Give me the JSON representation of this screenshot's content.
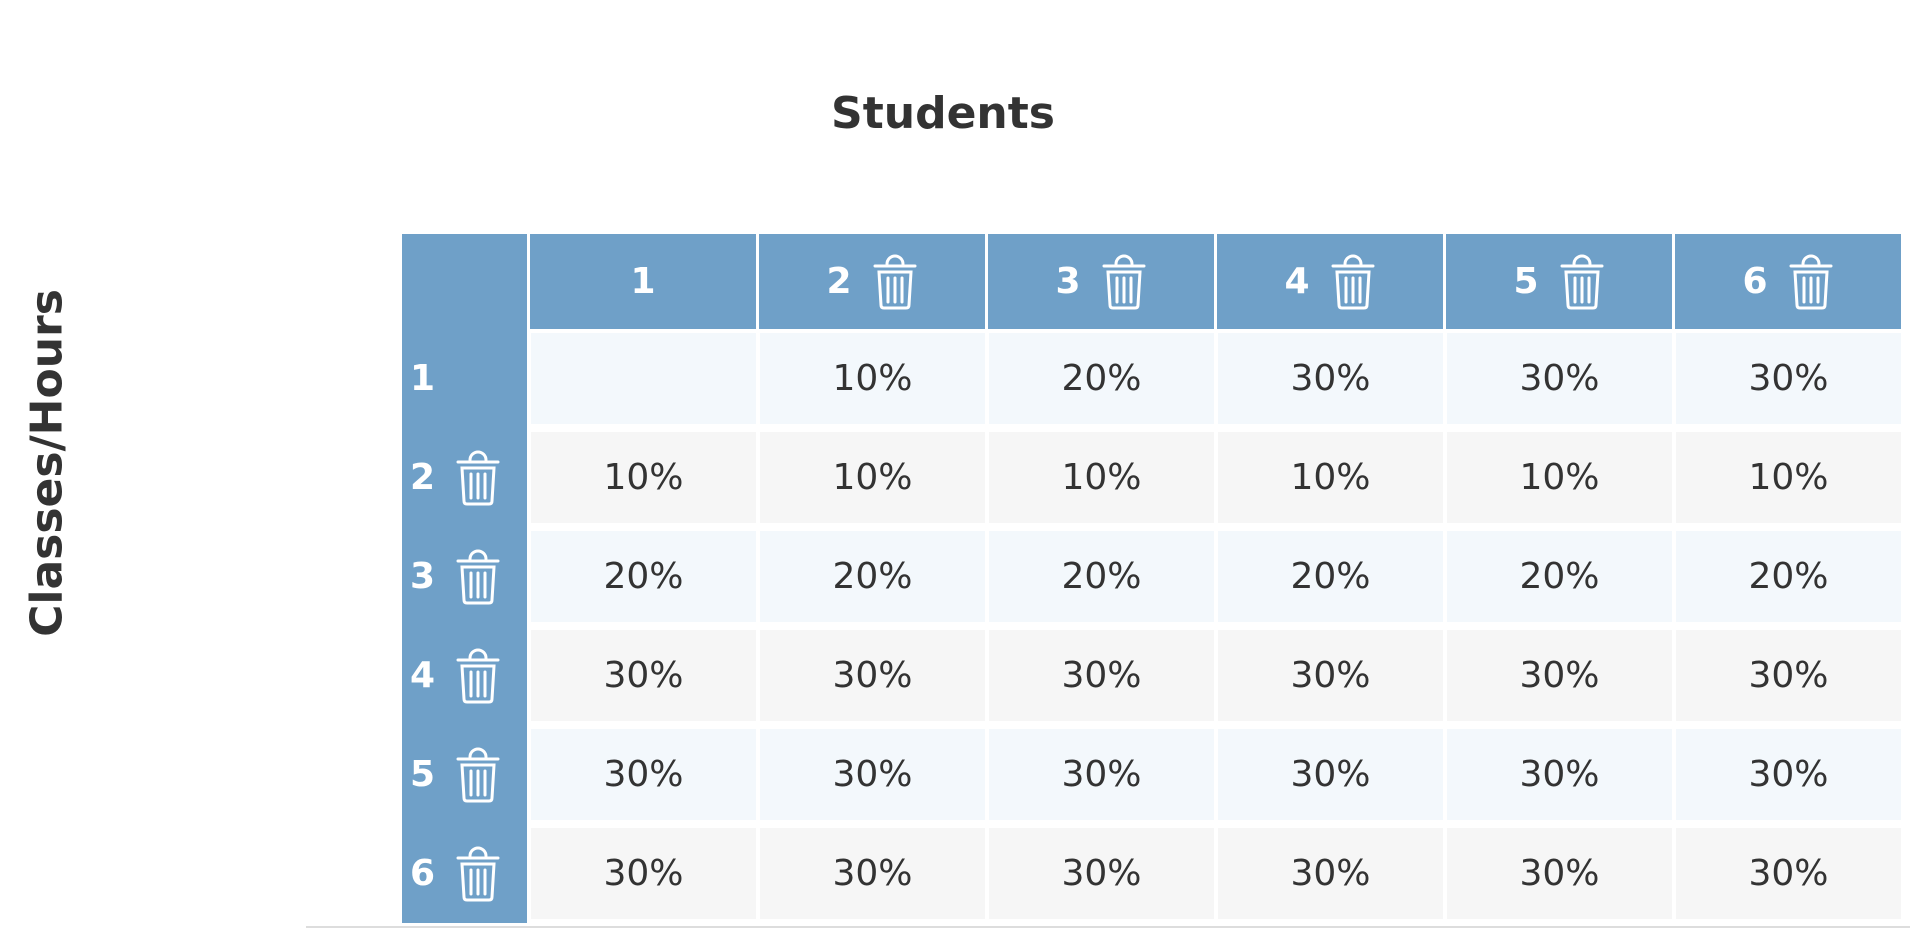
{
  "title": "Students",
  "row_axis_label": "Classes/Hours",
  "column_headers": [
    "1",
    "2",
    "3",
    "4",
    "5",
    "6"
  ],
  "rows": [
    {
      "header": "1",
      "cells": [
        null,
        "10%",
        "20%",
        "30%",
        "30%",
        "30%"
      ]
    },
    {
      "header": "2",
      "cells": [
        "10%",
        "10%",
        "10%",
        "10%",
        "10%",
        "10%"
      ]
    },
    {
      "header": "3",
      "cells": [
        "20%",
        "20%",
        "20%",
        "20%",
        "20%",
        "20%"
      ]
    },
    {
      "header": "4",
      "cells": [
        "30%",
        "30%",
        "30%",
        "30%",
        "30%",
        "30%"
      ]
    },
    {
      "header": "5",
      "cells": [
        "30%",
        "30%",
        "30%",
        "30%",
        "30%",
        "30%"
      ]
    },
    {
      "header": "6",
      "cells": [
        "30%",
        "30%",
        "30%",
        "30%",
        "30%",
        "30%"
      ]
    }
  ]
}
